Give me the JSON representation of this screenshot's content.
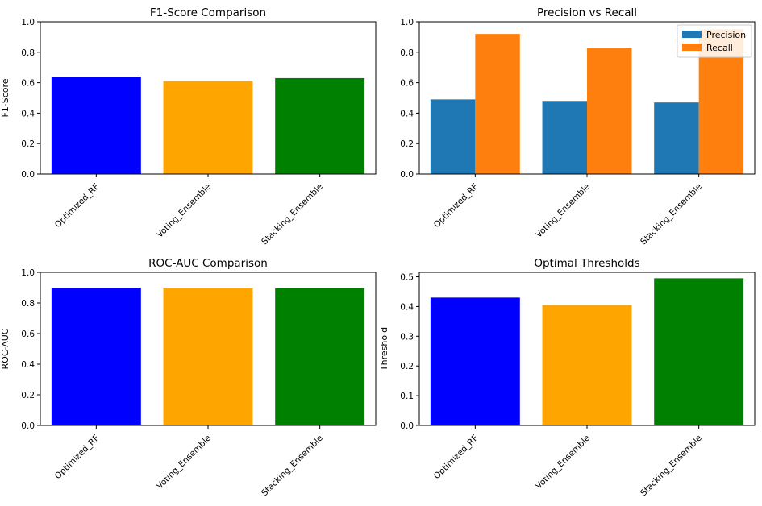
{
  "chart_data": [
    {
      "type": "bar",
      "title": "F1-Score Comparison",
      "xlabel": "",
      "ylabel": "F1-Score",
      "ylim": [
        0,
        1.0
      ],
      "yticks": [
        "0.0",
        "0.2",
        "0.4",
        "0.6",
        "0.8",
        "1.0"
      ],
      "categories": [
        "Optimized_RF",
        "Voting_Ensemble",
        "Stacking_Ensemble"
      ],
      "values": [
        0.64,
        0.61,
        0.63
      ],
      "colors": [
        "#0000ff",
        "#ffa500",
        "#008000"
      ],
      "grid": false
    },
    {
      "type": "bar",
      "title": "Precision vs Recall",
      "xlabel": "",
      "ylabel": "",
      "ylim": [
        0,
        1.0
      ],
      "yticks": [
        "0.0",
        "0.2",
        "0.4",
        "0.6",
        "0.8",
        "1.0"
      ],
      "categories": [
        "Optimized_RF",
        "Voting_Ensemble",
        "Stacking_Ensemble"
      ],
      "series": [
        {
          "name": "Precision",
          "values": [
            0.49,
            0.48,
            0.47
          ],
          "color": "#1f77b4"
        },
        {
          "name": "Recall",
          "values": [
            0.92,
            0.83,
            0.95
          ],
          "color": "#ff7f0e"
        }
      ],
      "legend": "top-right",
      "grid": false
    },
    {
      "type": "bar",
      "title": "ROC-AUC Comparison",
      "xlabel": "",
      "ylabel": "ROC-AUC",
      "ylim": [
        0,
        1.0
      ],
      "yticks": [
        "0.0",
        "0.2",
        "0.4",
        "0.6",
        "0.8",
        "1.0"
      ],
      "categories": [
        "Optimized_RF",
        "Voting_Ensemble",
        "Stacking_Ensemble"
      ],
      "values": [
        0.9,
        0.9,
        0.895
      ],
      "colors": [
        "#0000ff",
        "#ffa500",
        "#008000"
      ],
      "grid": false
    },
    {
      "type": "bar",
      "title": "Optimal Thresholds",
      "xlabel": "",
      "ylabel": "Threshold",
      "ylim": [
        0,
        0.515
      ],
      "yticks": [
        "0.0",
        "0.1",
        "0.2",
        "0.3",
        "0.4",
        "0.5"
      ],
      "categories": [
        "Optimized_RF",
        "Voting_Ensemble",
        "Stacking_Ensemble"
      ],
      "values": [
        0.43,
        0.405,
        0.495
      ],
      "colors": [
        "#0000ff",
        "#ffa500",
        "#008000"
      ],
      "grid": false
    }
  ]
}
